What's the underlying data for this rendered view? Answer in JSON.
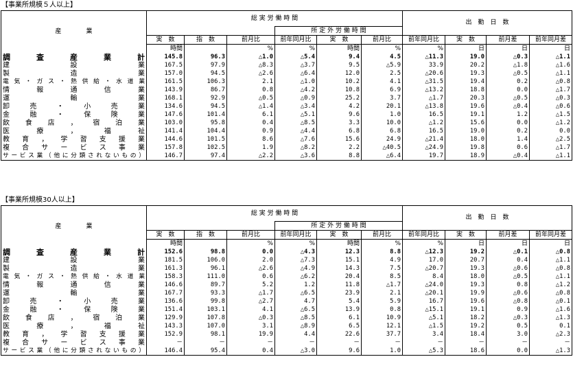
{
  "sections": [
    {
      "title": "【事業所規模５人以上】",
      "header": {
        "industry": "産　　　　業",
        "group_hours": "総 実 労 働 時 間",
        "group_overtime": "所 定 外 労 働 時 間",
        "group_days": "出　勤　日　数",
        "sub_labels": [
          "実　数",
          "指　数",
          "前月比",
          "前年同月比",
          "実　数",
          "前月比",
          "前年同月比",
          "実　数",
          "前月差",
          "前年同月差"
        ],
        "units": [
          "時間",
          "",
          "%",
          "%",
          "時間",
          "%",
          "%",
          "日",
          "日",
          "日"
        ]
      },
      "rows": [
        {
          "label": "調査産業計",
          "bold": true,
          "values": [
            "145.8",
            "96.3",
            "△1.0",
            "△5.4",
            "9.4",
            "4.5",
            "△11.3",
            "19.0",
            "△0.3",
            "△1.1"
          ]
        },
        {
          "label": "建設業",
          "values": [
            "167.5",
            "97.9",
            "△8.3",
            "△3.7",
            "9.5",
            "△5.9",
            "33.9",
            "20.2",
            "△1.8",
            "△1.6"
          ]
        },
        {
          "label": "製造業",
          "values": [
            "157.0",
            "94.5",
            "△2.6",
            "△6.4",
            "12.0",
            "2.5",
            "△20.6",
            "19.3",
            "△0.5",
            "△1.1"
          ]
        },
        {
          "label": "電気・ガス・熱供給・水道業",
          "small": true,
          "values": [
            "161.5",
            "106.3",
            "2.1",
            "△1.0",
            "10.2",
            "4.1",
            "△31.5",
            "19.4",
            "0.2",
            "△0.8"
          ]
        },
        {
          "label": "情報通信業",
          "values": [
            "143.9",
            "86.7",
            "0.8",
            "△4.2",
            "10.8",
            "6.9",
            "△13.2",
            "18.8",
            "0.0",
            "△1.7"
          ]
        },
        {
          "label": "運輸業",
          "values": [
            "168.1",
            "92.9",
            "△0.5",
            "△0.9",
            "25.2",
            "3.7",
            "△1.7",
            "20.3",
            "△0.5",
            "△0.3"
          ]
        },
        {
          "label": "卸売・小売業",
          "values": [
            "134.6",
            "94.5",
            "△1.4",
            "△3.4",
            "4.2",
            "20.1",
            "△13.8",
            "19.6",
            "△0.4",
            "△0.6"
          ]
        },
        {
          "label": "金融・保険業",
          "values": [
            "147.6",
            "101.4",
            "6.1",
            "△5.1",
            "9.6",
            "1.0",
            "16.5",
            "19.1",
            "1.2",
            "△1.5"
          ]
        },
        {
          "label": "飲食店，宿泊業",
          "values": [
            "103.0",
            "95.8",
            "0.4",
            "△8.5",
            "3.3",
            "10.0",
            "△1.2",
            "15.6",
            "0.0",
            "△1.2"
          ]
        },
        {
          "label": "医療，福祉",
          "values": [
            "141.4",
            "104.4",
            "0.9",
            "△4.4",
            "6.8",
            "6.8",
            "16.5",
            "19.0",
            "0.2",
            "0.0"
          ]
        },
        {
          "label": "教育，学習支援業",
          "values": [
            "144.6",
            "101.5",
            "8.6",
            "△7.6",
            "15.6",
            "24.9",
            "△21.4",
            "18.0",
            "1.4",
            "△2.5"
          ]
        },
        {
          "label": "複合サービス事業",
          "values": [
            "157.8",
            "102.5",
            "1.9",
            "△8.2",
            "2.2",
            "△40.5",
            "△24.9",
            "19.8",
            "0.6",
            "△1.7"
          ]
        },
        {
          "label": "サービス業（他に分類されないもの）",
          "small": true,
          "values": [
            "146.7",
            "97.4",
            "△2.2",
            "△3.6",
            "8.8",
            "△6.4",
            "19.7",
            "18.9",
            "△0.4",
            "△1.1"
          ]
        }
      ]
    },
    {
      "title": "【事業所規模30人以上】",
      "header": {
        "industry": "産　　　　業",
        "group_hours": "総 実 労 働 時 間",
        "group_overtime": "所 定 外 労 働 時 間",
        "group_days": "出　勤　日　数",
        "sub_labels": [
          "実　数",
          "指　数",
          "前月比",
          "前年同月比",
          "実　数",
          "前月比",
          "前年同月比",
          "実　数",
          "前月差",
          "前年同月差"
        ],
        "units": [
          "時間",
          "",
          "%",
          "%",
          "時間",
          "%",
          "%",
          "日",
          "日",
          "日"
        ]
      },
      "rows": [
        {
          "label": "調査産業計",
          "bold": true,
          "values": [
            "152.6",
            "98.8",
            "0.0",
            "△4.3",
            "12.3",
            "8.8",
            "△12.3",
            "19.2",
            "△0.1",
            "△0.8"
          ]
        },
        {
          "label": "建設業",
          "values": [
            "181.5",
            "106.0",
            "2.0",
            "△7.3",
            "15.1",
            "4.9",
            "17.0",
            "20.7",
            "0.4",
            "△1.1"
          ]
        },
        {
          "label": "製造業",
          "values": [
            "161.3",
            "96.1",
            "△2.6",
            "△4.9",
            "14.3",
            "7.5",
            "△20.7",
            "19.3",
            "△0.6",
            "△0.8"
          ]
        },
        {
          "label": "電気・ガス・熱供給・水道業",
          "small": true,
          "values": [
            "158.3",
            "111.0",
            "0.6",
            "△6.2",
            "20.4",
            "8.5",
            "8.4",
            "18.0",
            "△0.5",
            "△1.1"
          ]
        },
        {
          "label": "情報通信業",
          "values": [
            "146.6",
            "89.7",
            "5.2",
            "1.2",
            "11.8",
            "△1.7",
            "△24.0",
            "19.3",
            "0.8",
            "△1.2"
          ]
        },
        {
          "label": "運輸業",
          "values": [
            "167.7",
            "93.3",
            "△1.7",
            "△6.5",
            "23.9",
            "2.1",
            "△20.1",
            "19.9",
            "△0.6",
            "△0.8"
          ]
        },
        {
          "label": "卸売・小売業",
          "values": [
            "136.6",
            "99.8",
            "△2.7",
            "4.7",
            "5.4",
            "5.9",
            "16.7",
            "19.6",
            "△0.8",
            "△0.1"
          ]
        },
        {
          "label": "金融・保険業",
          "values": [
            "151.4",
            "103.1",
            "4.1",
            "△6.5",
            "13.9",
            "0.8",
            "△15.1",
            "19.1",
            "0.9",
            "△1.6"
          ]
        },
        {
          "label": "飲食店，宿泊業",
          "values": [
            "129.9",
            "107.8",
            "△0.3",
            "△8.5",
            "6.1",
            "10.9",
            "△5.1",
            "18.2",
            "△0.3",
            "△1.3"
          ]
        },
        {
          "label": "医療，福祉",
          "values": [
            "143.3",
            "107.0",
            "3.1",
            "△8.9",
            "6.5",
            "12.1",
            "△1.5",
            "19.2",
            "0.5",
            "0.1"
          ]
        },
        {
          "label": "教育，学習支援業",
          "values": [
            "152.9",
            "98.1",
            "19.9",
            "4.4",
            "22.6",
            "37.7",
            "3.4",
            "18.4",
            "3.0",
            "△2.3"
          ]
        },
        {
          "label": "複合サービス事業",
          "values": [
            "－",
            "－",
            "－",
            "－",
            "－",
            "－",
            "－",
            "－",
            "－",
            "－"
          ]
        },
        {
          "label": "サービス業（他に分類されないもの）",
          "small": true,
          "values": [
            "146.4",
            "95.4",
            "0.4",
            "△3.0",
            "9.6",
            "1.0",
            "△5.3",
            "18.6",
            "0.0",
            "△1.3"
          ]
        }
      ]
    }
  ]
}
